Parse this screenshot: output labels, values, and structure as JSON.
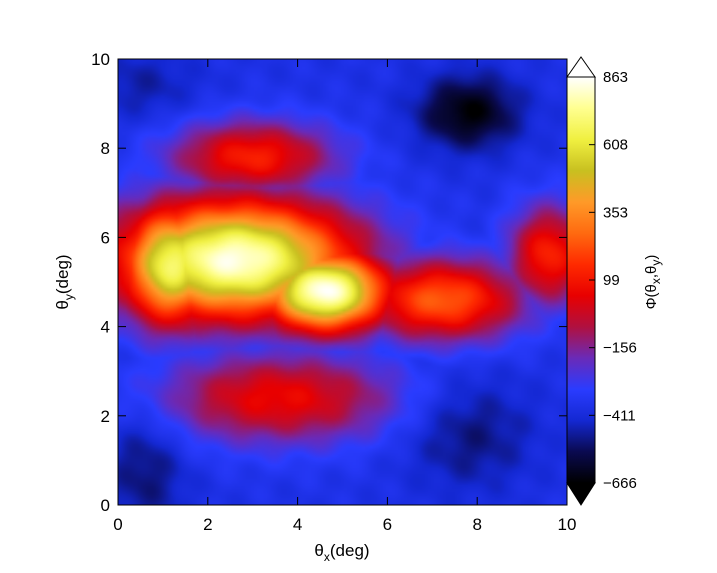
{
  "chart_data": {
    "type": "heatmap",
    "title": "",
    "xlabel": {
      "symbol": "θ",
      "sub": "x",
      "unit": "(deg)"
    },
    "ylabel": {
      "symbol": "θ",
      "sub": "y",
      "unit": "(deg)"
    },
    "colorbar_label": {
      "symbol": "Φ(θ",
      "sub1": "x",
      "mid": ",θ",
      "sub2": "y",
      "end": ")"
    },
    "xlim": [
      0,
      10
    ],
    "ylim": [
      0,
      10
    ],
    "x_ticks": [
      "0",
      "2",
      "4",
      "6",
      "8",
      "10"
    ],
    "y_ticks": [
      "0",
      "2",
      "4",
      "6",
      "8",
      "10"
    ],
    "colorbar_range": [
      -666,
      863
    ],
    "colorbar_ticks": [
      "863",
      "608",
      "353",
      "99",
      "−156",
      "−411",
      "−666"
    ],
    "colorbar_extend": "both",
    "colormap": [
      "#000000",
      "#0a0a50",
      "#1428d2",
      "#2a3cff",
      "#6a2ab8",
      "#b01040",
      "#e80000",
      "#ff2a00",
      "#ff6a10",
      "#ff9a28",
      "#c8c020",
      "#f0f040",
      "#ffff90",
      "#ffffff"
    ],
    "grid": false,
    "features": [
      {
        "kind": "peak",
        "x": 2.6,
        "y": 5.5,
        "value": 840,
        "rx": 2.6,
        "ry": 1.3
      },
      {
        "kind": "peak",
        "x": 4.6,
        "y": 4.8,
        "value": 860,
        "rx": 1.4,
        "ry": 0.9
      },
      {
        "kind": "peak",
        "x": 1.2,
        "y": 5.4,
        "value": 700,
        "rx": 1.1,
        "ry": 1.3
      },
      {
        "kind": "ridge",
        "x": 7.2,
        "y": 4.6,
        "value": 250,
        "rx": 1.8,
        "ry": 0.9
      },
      {
        "kind": "ridge",
        "x": 9.6,
        "y": 5.6,
        "value": 130,
        "rx": 0.9,
        "ry": 1.1
      },
      {
        "kind": "ridge",
        "x": 3.0,
        "y": 7.8,
        "value": 120,
        "rx": 1.8,
        "ry": 0.8
      },
      {
        "kind": "ridge",
        "x": 3.6,
        "y": 2.4,
        "value": 60,
        "rx": 2.6,
        "ry": 1.0
      },
      {
        "kind": "low",
        "x": 7.8,
        "y": 8.8,
        "value": -660,
        "rx": 1.1,
        "ry": 0.8
      },
      {
        "kind": "low",
        "x": 0.6,
        "y": 0.8,
        "value": -520,
        "rx": 0.9,
        "ry": 1.4
      },
      {
        "kind": "low",
        "x": 7.8,
        "y": 1.6,
        "value": -520,
        "rx": 1.4,
        "ry": 1.2
      },
      {
        "kind": "low",
        "x": 0.5,
        "y": 9.4,
        "value": -470,
        "rx": 1.3,
        "ry": 0.8
      }
    ],
    "background_value": -380
  }
}
